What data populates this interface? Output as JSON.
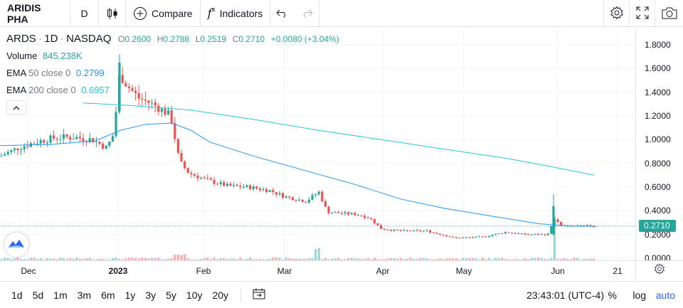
{
  "toolbar": {
    "symbol": "ARIDIS PHA",
    "interval": "D",
    "compare_label": "Compare",
    "indicators_label": "Indicators"
  },
  "legend": {
    "symbol": "ARDS",
    "interval": "1D",
    "exchange": "NASDAQ",
    "sep": "·",
    "ohlc": {
      "o_key": "O",
      "o": "0.2600",
      "h_key": "H",
      "h": "0.2788",
      "l_key": "L",
      "l": "0.2519",
      "c_key": "C",
      "c": "0.2710",
      "change": "+0.0080 (+3.04%)"
    },
    "volume_label": "Volume",
    "volume_value": "845.238K",
    "ema50_label": "EMA",
    "ema50_params": "50 close 0",
    "ema50_value": "0.2799",
    "ema200_label": "EMA",
    "ema200_params": "200 close 0",
    "ema200_value": "0.6957"
  },
  "price_scale": {
    "ticks": [
      "1.8000",
      "1.6000",
      "1.4000",
      "1.2000",
      "1.0000",
      "0.8000",
      "0.6000",
      "0.4000",
      "0.2000",
      "0.0000"
    ],
    "last_price": "0.2710"
  },
  "time_scale": {
    "ticks": [
      "Dec",
      "2023",
      "Feb",
      "Mar",
      "Apr",
      "May",
      "Jun",
      "21"
    ]
  },
  "bottombar": {
    "ranges": [
      "1d",
      "5d",
      "1m",
      "3m",
      "6m",
      "1y",
      "3y",
      "5y",
      "10y",
      "20y"
    ],
    "clock": "23:43:01 (UTC-4)",
    "percent": "%",
    "log": "log",
    "auto": "auto"
  },
  "colors": {
    "up": "#26a69a",
    "down": "#ef5350",
    "ema50": "#2196f3",
    "ema200": "#26c6da",
    "accent": "#2962ff"
  },
  "chart_data": {
    "type": "candlestick",
    "x_range": [
      "2022-11-21",
      "2023-06-16"
    ],
    "ylim": [
      0,
      1.9
    ],
    "grid": true,
    "ema50_points": [
      [
        0,
        0.95
      ],
      [
        0.08,
        0.96
      ],
      [
        0.15,
        0.99
      ],
      [
        0.19,
        1.08
      ],
      [
        0.23,
        1.13
      ],
      [
        0.27,
        1.14
      ],
      [
        0.3,
        1.08
      ],
      [
        0.33,
        0.98
      ],
      [
        0.4,
        0.86
      ],
      [
        0.48,
        0.74
      ],
      [
        0.56,
        0.62
      ],
      [
        0.63,
        0.5
      ],
      [
        0.7,
        0.42
      ],
      [
        0.78,
        0.35
      ],
      [
        0.85,
        0.29
      ],
      [
        0.9,
        0.27
      ],
      [
        0.94,
        0.27
      ]
    ],
    "ema200_points": [
      [
        0.13,
        1.31
      ],
      [
        0.2,
        1.29
      ],
      [
        0.3,
        1.25
      ],
      [
        0.4,
        1.17
      ],
      [
        0.5,
        1.08
      ],
      [
        0.6,
        1.0
      ],
      [
        0.7,
        0.92
      ],
      [
        0.8,
        0.84
      ],
      [
        0.87,
        0.77
      ],
      [
        0.935,
        0.7
      ]
    ]
  }
}
